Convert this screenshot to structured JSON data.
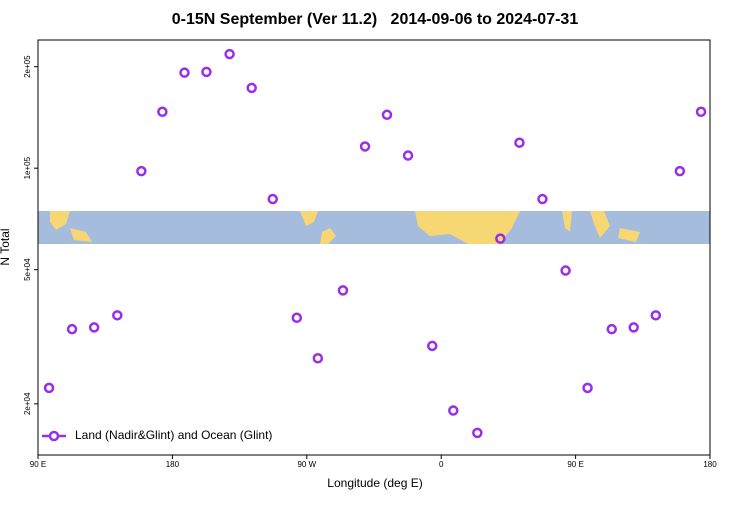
{
  "chart_data": {
    "type": "scatter",
    "title": "0-15N September (Ver 11.2)   2014-09-06 to 2024-07-31",
    "x_label": "Longitude (deg E)",
    "y_label": "N Total",
    "log_y": true,
    "legend": "lower left",
    "xlim": [
      90,
      540
    ],
    "ylim": [
      14100,
      240000
    ],
    "xticks": [
      {
        "value": 90,
        "label": "90 E"
      },
      {
        "value": 180,
        "label": "180"
      },
      {
        "value": 270,
        "label": "90 W"
      },
      {
        "value": 360,
        "label": "0"
      },
      {
        "value": 450,
        "label": "90 E"
      },
      {
        "value": 540,
        "label": "180"
      }
    ],
    "yticks": [
      {
        "value": 20000,
        "label": "2e+04"
      },
      {
        "value": 50000,
        "label": "5e+04"
      },
      {
        "value": 100000,
        "label": "1e+05"
      },
      {
        "value": 200000,
        "label": "2e+05"
      }
    ],
    "series": [
      {
        "name": "Land (Nadir&Glint) and Ocean (Glint)",
        "color": "#9a2ee6",
        "x": [
          97.4,
          112.8,
          127.6,
          143.1,
          159.2,
          173.3,
          188.1,
          202.8,
          218.3,
          233.1,
          247.2,
          263.3,
          277.4,
          294.2,
          309.0,
          323.7,
          337.8,
          354.0,
          368.1,
          384.2,
          399.6,
          412.4,
          427.8,
          443.3,
          458.0,
          474.2,
          488.9,
          503.7,
          519.8,
          534.0
        ],
        "values": [
          22300,
          33300,
          33700,
          36600,
          98000,
          147000,
          192000,
          193000,
          218000,
          173000,
          81000,
          36000,
          27300,
          43400,
          116000,
          144000,
          109000,
          29700,
          19100,
          16400,
          61800,
          119000,
          81000,
          49700,
          22300,
          33300,
          33700,
          36600,
          98000,
          147000
        ]
      }
    ]
  }
}
